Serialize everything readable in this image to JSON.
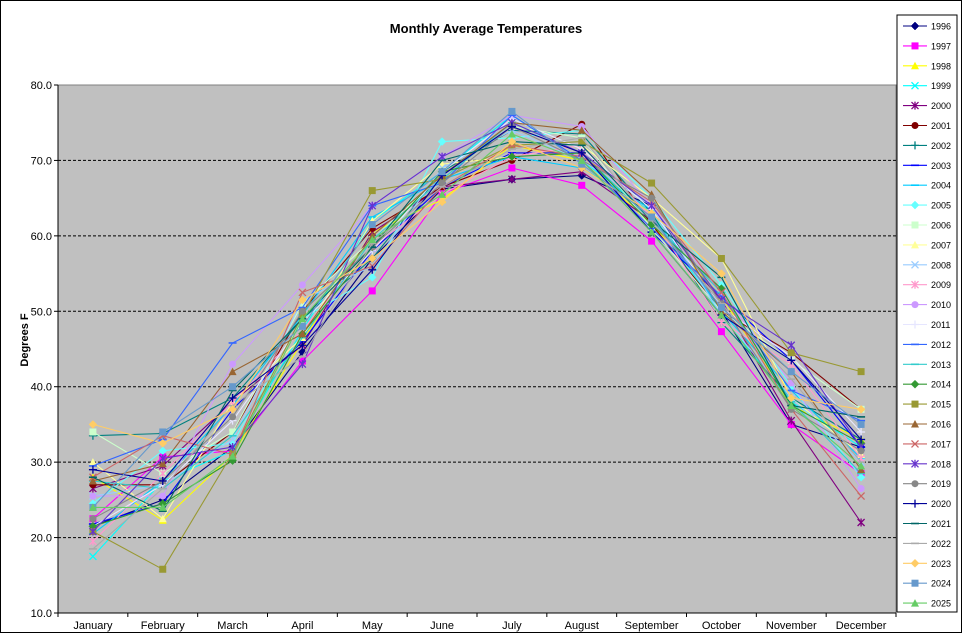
{
  "chart_data": {
    "type": "line",
    "title": "Monthly Average Temperatures",
    "xlabel": "",
    "ylabel": "Degrees F",
    "ylim": [
      10,
      80
    ],
    "yticks": [
      "10.0",
      "20.0",
      "30.0",
      "40.0",
      "50.0",
      "60.0",
      "70.0",
      "80.0"
    ],
    "grid": true,
    "legend": "right",
    "categories": [
      "January",
      "February",
      "March",
      "April",
      "May",
      "June",
      "July",
      "August",
      "September",
      "October",
      "November",
      "December"
    ],
    "series": [
      {
        "name": "1996",
        "color": "#000080",
        "marker": "diamond",
        "values": [
          21.5,
          25.0,
          32.0,
          44.6,
          57.0,
          66.2,
          67.5,
          68.0,
          64.0,
          50.0,
          35.0,
          32.0
        ]
      },
      {
        "name": "1997",
        "color": "#ff00ff",
        "marker": "square",
        "values": [
          22.5,
          30.7,
          31.5,
          43.4,
          52.7,
          65.6,
          69.0,
          66.7,
          59.3,
          47.3,
          35.0,
          28.5
        ]
      },
      {
        "name": "1998",
        "color": "#ffff00",
        "marker": "triangle",
        "values": [
          28.0,
          22.3,
          31.0,
          46.0,
          60.5,
          64.8,
          72.0,
          70.0,
          61.5,
          52.0,
          37.5,
          33.0
        ]
      },
      {
        "name": "1999",
        "color": "#00ffff",
        "marker": "x",
        "values": [
          17.5,
          27.5,
          31.5,
          47.5,
          62.0,
          68.5,
          76.0,
          70.0,
          63.0,
          49.5,
          38.0,
          32.0
        ]
      },
      {
        "name": "2000",
        "color": "#800080",
        "marker": "star",
        "values": [
          26.5,
          29.5,
          38.0,
          45.5,
          60.5,
          66.5,
          67.5,
          68.5,
          62.0,
          51.5,
          35.5,
          22.0
        ]
      },
      {
        "name": "2001",
        "color": "#800000",
        "marker": "circle",
        "values": [
          27.0,
          27.0,
          34.0,
          50.0,
          61.0,
          66.5,
          70.0,
          74.8,
          61.5,
          50.0,
          44.5,
          37.0
        ]
      },
      {
        "name": "2002",
        "color": "#008080",
        "marker": "plus",
        "values": [
          33.5,
          33.8,
          38.5,
          49.0,
          57.0,
          68.5,
          74.0,
          73.5,
          63.0,
          48.5,
          38.5,
          33.0
        ]
      },
      {
        "name": "2003",
        "color": "#0000ff",
        "marker": "dash",
        "values": [
          21.8,
          24.5,
          37.0,
          46.0,
          58.0,
          66.5,
          71.0,
          71.0,
          60.5,
          52.0,
          43.5,
          32.0
        ]
      },
      {
        "name": "2004",
        "color": "#00ccff",
        "marker": "dash",
        "values": [
          20.5,
          27.5,
          37.5,
          49.5,
          62.5,
          67.5,
          70.5,
          69.0,
          63.5,
          50.0,
          39.5,
          30.5
        ]
      },
      {
        "name": "2005",
        "color": "#66ffff",
        "marker": "diamond",
        "values": [
          24.5,
          31.5,
          32.5,
          49.0,
          54.5,
          72.5,
          73.0,
          74.0,
          65.0,
          53.5,
          40.0,
          28.0
        ]
      },
      {
        "name": "2006",
        "color": "#ccffcc",
        "marker": "square",
        "values": [
          34.0,
          28.5,
          34.0,
          51.0,
          59.5,
          68.0,
          74.5,
          73.0,
          61.0,
          50.0,
          43.5,
          37.0
        ]
      },
      {
        "name": "2007",
        "color": "#ffff99",
        "marker": "triangle",
        "values": [
          30.0,
          22.5,
          38.0,
          46.5,
          62.0,
          69.5,
          70.5,
          72.0,
          65.0,
          57.0,
          38.5,
          31.0
        ]
      },
      {
        "name": "2008",
        "color": "#99ccff",
        "marker": "x",
        "values": [
          25.5,
          27.0,
          33.0,
          51.5,
          56.0,
          69.0,
          74.0,
          70.0,
          64.0,
          49.5,
          38.5,
          30.0
        ]
      },
      {
        "name": "2009",
        "color": "#ff99cc",
        "marker": "star",
        "values": [
          19.5,
          28.5,
          38.0,
          47.5,
          58.5,
          65.5,
          70.5,
          72.0,
          62.5,
          48.5,
          43.0,
          30.5
        ]
      },
      {
        "name": "2010",
        "color": "#cc99ff",
        "marker": "circle",
        "values": [
          25.5,
          25.5,
          43.0,
          53.5,
          64.0,
          70.5,
          76.0,
          74.5,
          64.0,
          52.5,
          40.5,
          26.5
        ]
      },
      {
        "name": "2011",
        "color": "#e6e6ff",
        "marker": "plus",
        "values": [
          21.5,
          27.0,
          35.5,
          48.5,
          58.0,
          68.5,
          75.5,
          71.5,
          63.5,
          50.5,
          44.0,
          34.0
        ]
      },
      {
        "name": "2012",
        "color": "#3366ff",
        "marker": "dash",
        "values": [
          29.5,
          33.0,
          45.8,
          50.5,
          64.0,
          67.0,
          76.0,
          70.0,
          61.0,
          52.0,
          39.5,
          35.5
        ]
      },
      {
        "name": "2013",
        "color": "#33cccc",
        "marker": "dash",
        "values": [
          27.5,
          26.5,
          33.5,
          46.5,
          59.5,
          67.5,
          75.0,
          71.0,
          62.0,
          52.5,
          38.0,
          28.5
        ]
      },
      {
        "name": "2014",
        "color": "#339933",
        "marker": "diamond",
        "values": [
          21.5,
          24.5,
          30.2,
          47.0,
          58.5,
          68.5,
          70.5,
          71.0,
          61.5,
          53.0,
          37.5,
          32.5
        ]
      },
      {
        "name": "2015",
        "color": "#999933",
        "marker": "square",
        "values": [
          20.8,
          15.8,
          31.2,
          49.5,
          66.0,
          67.5,
          72.0,
          72.5,
          67.0,
          57.0,
          44.5,
          42.0
        ]
      },
      {
        "name": "2016",
        "color": "#996633",
        "marker": "triangle",
        "values": [
          27.5,
          29.8,
          42.0,
          47.0,
          60.0,
          68.0,
          75.0,
          74.0,
          65.5,
          50.0,
          42.0,
          29.0
        ]
      },
      {
        "name": "2017",
        "color": "#cc6666",
        "marker": "x",
        "values": [
          28.0,
          33.5,
          31.0,
          52.5,
          56.0,
          66.5,
          72.0,
          70.5,
          64.5,
          52.5,
          37.0,
          25.5
        ]
      },
      {
        "name": "2018",
        "color": "#6633cc",
        "marker": "star",
        "values": [
          20.8,
          30.5,
          32.0,
          43.0,
          64.0,
          70.5,
          75.0,
          71.0,
          64.0,
          51.5,
          45.5,
          32.0
        ]
      },
      {
        "name": "2019",
        "color": "#888888",
        "marker": "circle",
        "values": [
          22.5,
          27.5,
          36.0,
          50.0,
          58.5,
          67.0,
          74.5,
          70.0,
          65.0,
          51.0,
          37.0,
          31.5
        ]
      },
      {
        "name": "2020",
        "color": "#000099",
        "marker": "plus",
        "values": [
          29.0,
          27.5,
          38.5,
          45.5,
          55.5,
          68.0,
          74.5,
          71.0,
          60.5,
          49.5,
          43.5,
          33.0
        ]
      },
      {
        "name": "2021",
        "color": "#006666",
        "marker": "dash",
        "values": [
          28.0,
          23.5,
          39.5,
          49.0,
          58.5,
          70.0,
          72.5,
          72.0,
          62.0,
          54.5,
          37.5,
          36.0
        ]
      },
      {
        "name": "2022",
        "color": "#aaaaaa",
        "marker": "dash",
        "values": [
          18.5,
          26.5,
          37.5,
          44.0,
          59.0,
          66.5,
          71.5,
          73.0,
          62.0,
          51.0,
          41.0,
          30.0
        ]
      },
      {
        "name": "2023",
        "color": "#ffcc66",
        "marker": "diamond",
        "values": [
          35.0,
          32.5,
          37.0,
          51.5,
          57.0,
          64.5,
          72.5,
          69.0,
          63.0,
          55.0,
          38.5,
          37.0
        ]
      },
      {
        "name": "2024",
        "color": "#6699cc",
        "marker": "square",
        "values": [
          24.0,
          34.0,
          40.0,
          48.0,
          61.5,
          68.5,
          76.5,
          69.5,
          62.5,
          50.5,
          42.0,
          35.0
        ]
      },
      {
        "name": "2025",
        "color": "#66cc66",
        "marker": "triangle",
        "values": [
          24.0,
          24.0,
          30.8,
          49.0,
          59.5,
          65.5,
          73.5,
          70.0,
          60.5,
          49.5,
          37.5,
          29.5
        ]
      }
    ]
  }
}
